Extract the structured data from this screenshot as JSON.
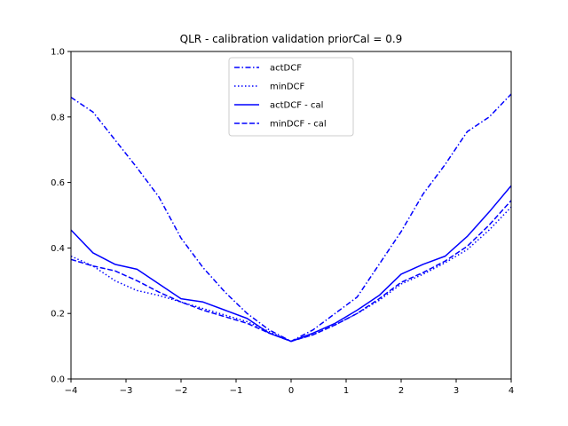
{
  "chart_data": {
    "type": "line",
    "title": "QLR - calibration validation priorCal = 0.9",
    "xlabel": "",
    "ylabel": "",
    "xlim": [
      -4,
      4
    ],
    "ylim": [
      0,
      1.0
    ],
    "x_ticks": [
      -4,
      -3,
      -2,
      -1,
      0,
      1,
      2,
      3,
      4
    ],
    "x_tick_labels": [
      "−4",
      "−3",
      "−2",
      "−1",
      "0",
      "1",
      "2",
      "3",
      "4"
    ],
    "y_ticks": [
      0,
      0.2,
      0.4,
      0.6,
      0.8,
      1.0
    ],
    "y_tick_labels": [
      "0.0",
      "0.2",
      "0.4",
      "0.6",
      "0.8",
      "1.0"
    ],
    "grid": false,
    "legend_position": "top-center",
    "color": "#0000ff",
    "series": [
      {
        "name": "actDCF",
        "style": "dashdot",
        "x": [
          -4,
          -3.6,
          -3.2,
          -2.8,
          -2.4,
          -2.0,
          -1.6,
          -1.2,
          -0.8,
          -0.4,
          0,
          0.4,
          0.8,
          1.2,
          1.6,
          2.0,
          2.4,
          2.8,
          3.2,
          3.6,
          4.0
        ],
        "y": [
          0.86,
          0.815,
          0.73,
          0.645,
          0.555,
          0.43,
          0.34,
          0.265,
          0.2,
          0.15,
          0.115,
          0.15,
          0.2,
          0.25,
          0.35,
          0.45,
          0.565,
          0.655,
          0.755,
          0.8,
          0.87
        ]
      },
      {
        "name": "minDCF",
        "style": "dotted",
        "x": [
          -4,
          -3.6,
          -3.2,
          -2.8,
          -2.4,
          -2.0,
          -1.6,
          -1.2,
          -0.8,
          -0.4,
          0,
          0.4,
          0.8,
          1.2,
          1.6,
          2.0,
          2.4,
          2.8,
          3.2,
          3.6,
          4.0
        ],
        "y": [
          0.375,
          0.345,
          0.3,
          0.27,
          0.255,
          0.235,
          0.215,
          0.195,
          0.175,
          0.145,
          0.115,
          0.135,
          0.165,
          0.2,
          0.24,
          0.29,
          0.32,
          0.355,
          0.395,
          0.455,
          0.525
        ]
      },
      {
        "name": "actDCF - cal",
        "style": "solid",
        "x": [
          -4,
          -3.6,
          -3.2,
          -2.8,
          -2.4,
          -2.0,
          -1.6,
          -1.2,
          -0.8,
          -0.4,
          0,
          0.4,
          0.8,
          1.2,
          1.6,
          2.0,
          2.4,
          2.8,
          3.2,
          3.6,
          4.0
        ],
        "y": [
          0.455,
          0.385,
          0.35,
          0.335,
          0.29,
          0.245,
          0.235,
          0.21,
          0.185,
          0.14,
          0.115,
          0.14,
          0.17,
          0.21,
          0.255,
          0.32,
          0.35,
          0.375,
          0.435,
          0.51,
          0.59
        ]
      },
      {
        "name": "minDCF - cal",
        "style": "dashed",
        "x": [
          -4,
          -3.6,
          -3.2,
          -2.8,
          -2.4,
          -2.0,
          -1.6,
          -1.2,
          -0.8,
          -0.4,
          0,
          0.4,
          0.8,
          1.2,
          1.6,
          2.0,
          2.4,
          2.8,
          3.2,
          3.6,
          4.0
        ],
        "y": [
          0.365,
          0.345,
          0.33,
          0.3,
          0.265,
          0.235,
          0.21,
          0.19,
          0.17,
          0.14,
          0.115,
          0.135,
          0.165,
          0.2,
          0.245,
          0.295,
          0.325,
          0.36,
          0.405,
          0.47,
          0.545
        ]
      }
    ]
  }
}
